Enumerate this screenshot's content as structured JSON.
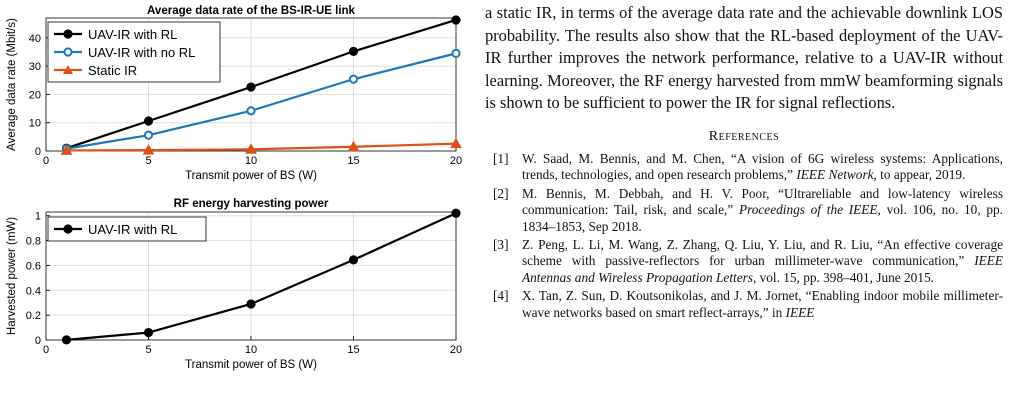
{
  "chart_data": [
    {
      "type": "line",
      "title": "Average data rate of the BS-IR-UE link",
      "xlabel": "Transmit power of BS (W)",
      "ylabel": "Average data rate (Mbit/s)",
      "xlim": [
        0,
        20
      ],
      "ylim": [
        0,
        47
      ],
      "xticks": [
        0,
        5,
        10,
        15,
        20
      ],
      "yticks": [
        0,
        10,
        20,
        30,
        40
      ],
      "grid": true,
      "legend_position": "top-left",
      "series": [
        {
          "name": "UAV-IR with RL",
          "color": "#000000",
          "marker": "circle",
          "x": [
            1,
            5,
            10,
            15,
            20
          ],
          "y": [
            1.0,
            10.6,
            22.6,
            35.2,
            46.3
          ]
        },
        {
          "name": "UAV-IR with no RL",
          "color": "#1f77b4",
          "marker": "circle",
          "x": [
            1,
            5,
            10,
            15,
            20
          ],
          "y": [
            0.8,
            5.6,
            14.2,
            25.4,
            34.5
          ]
        },
        {
          "name": "Static IR",
          "color": "#d95319",
          "marker": "triangle",
          "x": [
            1,
            5,
            10,
            15,
            20
          ],
          "y": [
            0.2,
            0.3,
            0.6,
            1.5,
            2.6
          ]
        }
      ]
    },
    {
      "type": "line",
      "title": "RF energy harvesting power",
      "xlabel": "Transmit power of BS (W)",
      "ylabel": "Harvested power (mW)",
      "xlim": [
        0,
        20
      ],
      "ylim": [
        0,
        1.03
      ],
      "xticks": [
        0,
        5,
        10,
        15,
        20
      ],
      "yticks": [
        0,
        0.2,
        0.4,
        0.6,
        0.8,
        1
      ],
      "grid": true,
      "legend_position": "top-left",
      "series": [
        {
          "name": "UAV-IR with RL",
          "color": "#000000",
          "marker": "circle",
          "x": [
            1,
            5,
            10,
            15,
            20
          ],
          "y": [
            0.001,
            0.06,
            0.29,
            0.645,
            1.02
          ]
        }
      ]
    }
  ],
  "text": {
    "intro": "a static IR, in terms of the average data rate and the achievable downlink LOS probability. The results also show that the RL-based deployment of the UAV-IR further improves the network performance, relative to a UAV-IR without learning. Moreover, the RF energy harvested from mmW beamforming signals is shown to be sufficient to power the IR for signal reflections.",
    "references_heading": "References",
    "references": [
      {
        "num": "[1]",
        "before": "W. Saad, M. Bennis, and M. Chen, “A vision of 6G wireless systems: Applications, trends, technologies, and open research problems,” ",
        "venue": "IEEE Network",
        "after": ", to appear, 2019."
      },
      {
        "num": "[2]",
        "before": "M. Bennis, M. Debbah, and H. V. Poor, “Ultrareliable and low-latency wireless communication: Tail, risk, and scale,” ",
        "venue": "Proceedings of the IEEE",
        "after": ", vol. 106, no. 10, pp. 1834–1853, Sep 2018."
      },
      {
        "num": "[3]",
        "before": "Z. Peng, L. Li, M. Wang, Z. Zhang, Q. Liu, Y. Liu, and R. Liu, “An effective coverage scheme with passive-reflectors for urban millimeter-wave communication,” ",
        "venue": "IEEE Antennas and Wireless Propagation Letters",
        "after": ", vol. 15, pp. 398–401, June 2015."
      },
      {
        "num": "[4]",
        "before": "X. Tan, Z. Sun, D. Koutsonikolas, and J. M. Jornet, “Enabling indoor mobile millimeter-wave networks based on smart reflect-arrays,” in ",
        "venue": "IEEE",
        "after": ""
      }
    ]
  }
}
